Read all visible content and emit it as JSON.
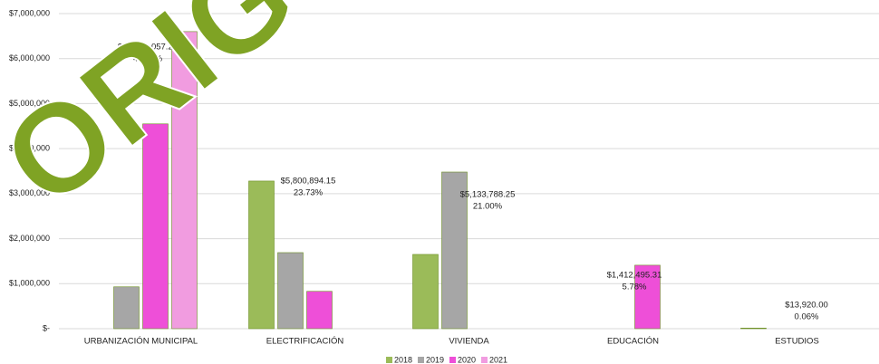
{
  "chart_data": {
    "type": "bar",
    "watermark": "ORIG",
    "categories": [
      "URBANIZACIÓN MUNICIPAL",
      "ELECTRIFICACIÓN",
      "VIVIENDA",
      "EDUCACIÓN",
      "ESTUDIOS"
    ],
    "series": [
      {
        "name": "2018",
        "color": "#9bbb59",
        "values": [
          null,
          3280000,
          1650000,
          null,
          13920
        ]
      },
      {
        "name": "2019",
        "color": "#a6a6a6",
        "values": [
          930000,
          1690000,
          3480000,
          null,
          null
        ]
      },
      {
        "name": "2020",
        "color": "#ee4fd8",
        "values": [
          4550000,
          830000,
          null,
          1410000,
          null
        ]
      },
      {
        "name": "2021",
        "color": "#f19ce0",
        "values": [
          6600000,
          null,
          null,
          null,
          null
        ]
      }
    ],
    "annotations": [
      {
        "total": "$12,083,057.28",
        "share": "49.43%"
      },
      {
        "total": "$5,800,894.15",
        "share": "23.73%"
      },
      {
        "total": "$5,133,788.25",
        "share": "21.00%"
      },
      {
        "total": "$1,412,495.31",
        "share": "5.78%"
      },
      {
        "total": "$13,920.00",
        "share": "0.06%"
      }
    ],
    "ylim": [
      0,
      7000000
    ],
    "yticks": [
      {
        "value": 0,
        "label": "$-"
      },
      {
        "value": 1000000,
        "label": "$1,000,000"
      },
      {
        "value": 2000000,
        "label": "$2,000,000"
      },
      {
        "value": 3000000,
        "label": "$3,000,000"
      },
      {
        "value": 4000000,
        "label": "$4,000,000"
      },
      {
        "value": 5000000,
        "label": "$5,000,000"
      },
      {
        "value": 6000000,
        "label": "$6,000,000"
      },
      {
        "value": 7000000,
        "label": "$7,000,000"
      }
    ],
    "grid": true,
    "legend": "bottom"
  }
}
